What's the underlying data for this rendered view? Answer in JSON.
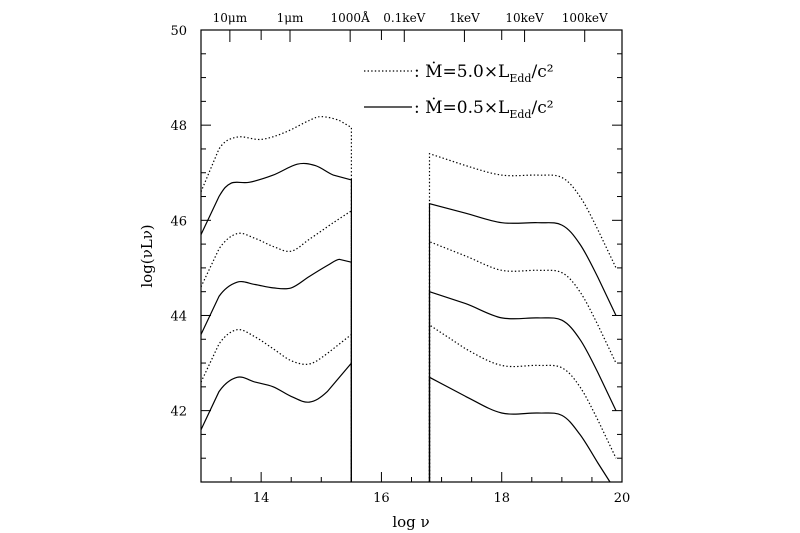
{
  "chart_data": {
    "type": "line",
    "title": "",
    "xlabel": "log ν",
    "ylabel": "log(νLν)",
    "xlim": [
      13,
      20
    ],
    "ylim": [
      40.5,
      50
    ],
    "x_ticks": [
      14,
      16,
      18,
      20
    ],
    "y_ticks": [
      42,
      44,
      46,
      48,
      50
    ],
    "top_axis_labels": [
      {
        "label": "10μm",
        "x": 13.48
      },
      {
        "label": "1μm",
        "x": 14.48
      },
      {
        "label": "1000Å",
        "x": 15.48
      },
      {
        "label": "0.1keV",
        "x": 16.38
      },
      {
        "label": "1keV",
        "x": 17.38
      },
      {
        "label": "10keV",
        "x": 18.38
      },
      {
        "label": "100keV",
        "x": 19.38
      }
    ],
    "legend": [
      {
        "label_main": ": Ṁ=5.0×L",
        "label_sub": "Edd",
        "label_tail": "/c²",
        "style": "dotted"
      },
      {
        "label_main": ": Ṁ=0.5×L",
        "label_sub": "Edd",
        "label_tail": "/c²",
        "style": "solid"
      }
    ],
    "legend_position": "top-right",
    "series": [
      {
        "style": "dotted",
        "points": [
          [
            13.0,
            46.6
          ],
          [
            13.3,
            47.5
          ],
          [
            13.6,
            47.75
          ],
          [
            14.0,
            47.7
          ],
          [
            14.4,
            47.85
          ],
          [
            14.8,
            48.1
          ],
          [
            15.0,
            48.18
          ],
          [
            15.3,
            48.1
          ],
          [
            15.5,
            47.95
          ],
          [
            15.5,
            40.5
          ]
        ]
      },
      {
        "style": "solid",
        "points": [
          [
            13.0,
            45.7
          ],
          [
            13.3,
            46.5
          ],
          [
            13.5,
            46.78
          ],
          [
            13.8,
            46.8
          ],
          [
            14.2,
            46.95
          ],
          [
            14.6,
            47.18
          ],
          [
            14.9,
            47.15
          ],
          [
            15.2,
            46.95
          ],
          [
            15.5,
            46.85
          ],
          [
            15.5,
            40.5
          ]
        ]
      },
      {
        "style": "dotted",
        "points": [
          [
            13.0,
            44.6
          ],
          [
            13.3,
            45.4
          ],
          [
            13.6,
            45.72
          ],
          [
            13.9,
            45.62
          ],
          [
            14.2,
            45.45
          ],
          [
            14.5,
            45.35
          ],
          [
            14.8,
            45.6
          ],
          [
            15.2,
            45.95
          ],
          [
            15.5,
            46.2
          ],
          [
            15.5,
            40.5
          ]
        ]
      },
      {
        "style": "solid",
        "points": [
          [
            13.0,
            43.6
          ],
          [
            13.3,
            44.4
          ],
          [
            13.6,
            44.7
          ],
          [
            13.9,
            44.65
          ],
          [
            14.2,
            44.58
          ],
          [
            14.5,
            44.58
          ],
          [
            14.8,
            44.82
          ],
          [
            15.1,
            45.05
          ],
          [
            15.3,
            45.18
          ],
          [
            15.5,
            45.12
          ],
          [
            15.5,
            40.5
          ]
        ]
      },
      {
        "style": "dotted",
        "points": [
          [
            13.0,
            42.6
          ],
          [
            13.3,
            43.4
          ],
          [
            13.6,
            43.7
          ],
          [
            13.9,
            43.55
          ],
          [
            14.2,
            43.3
          ],
          [
            14.5,
            43.05
          ],
          [
            14.8,
            42.98
          ],
          [
            15.1,
            43.2
          ],
          [
            15.5,
            43.6
          ],
          [
            15.5,
            40.5
          ]
        ]
      },
      {
        "style": "solid",
        "points": [
          [
            13.0,
            41.6
          ],
          [
            13.3,
            42.4
          ],
          [
            13.6,
            42.7
          ],
          [
            13.9,
            42.6
          ],
          [
            14.2,
            42.5
          ],
          [
            14.5,
            42.3
          ],
          [
            14.8,
            42.18
          ],
          [
            15.1,
            42.4
          ],
          [
            15.5,
            43.0
          ],
          [
            15.5,
            40.5
          ]
        ]
      },
      {
        "style": "dotted",
        "points": [
          [
            16.8,
            40.5
          ],
          [
            16.8,
            47.4
          ],
          [
            17.4,
            47.15
          ],
          [
            18.0,
            46.95
          ],
          [
            18.6,
            46.95
          ],
          [
            19.0,
            46.9
          ],
          [
            19.3,
            46.5
          ],
          [
            19.6,
            45.8
          ],
          [
            19.9,
            45.0
          ]
        ]
      },
      {
        "style": "solid",
        "points": [
          [
            16.8,
            40.5
          ],
          [
            16.8,
            46.35
          ],
          [
            17.4,
            46.15
          ],
          [
            18.0,
            45.95
          ],
          [
            18.6,
            45.95
          ],
          [
            19.0,
            45.9
          ],
          [
            19.3,
            45.5
          ],
          [
            19.6,
            44.8
          ],
          [
            19.9,
            44.0
          ]
        ]
      },
      {
        "style": "dotted",
        "points": [
          [
            16.8,
            40.5
          ],
          [
            16.8,
            45.55
          ],
          [
            17.4,
            45.25
          ],
          [
            18.0,
            44.95
          ],
          [
            18.6,
            44.95
          ],
          [
            19.0,
            44.9
          ],
          [
            19.3,
            44.5
          ],
          [
            19.6,
            43.8
          ],
          [
            19.9,
            43.0
          ]
        ]
      },
      {
        "style": "solid",
        "points": [
          [
            16.8,
            40.5
          ],
          [
            16.8,
            44.5
          ],
          [
            17.4,
            44.25
          ],
          [
            18.0,
            43.95
          ],
          [
            18.6,
            43.95
          ],
          [
            19.0,
            43.9
          ],
          [
            19.3,
            43.5
          ],
          [
            19.6,
            42.8
          ],
          [
            19.9,
            42.0
          ]
        ]
      },
      {
        "style": "dotted",
        "points": [
          [
            16.8,
            40.5
          ],
          [
            16.8,
            43.8
          ],
          [
            17.4,
            43.3
          ],
          [
            18.0,
            42.95
          ],
          [
            18.6,
            42.95
          ],
          [
            19.0,
            42.9
          ],
          [
            19.3,
            42.5
          ],
          [
            19.6,
            41.8
          ],
          [
            19.9,
            41.0
          ]
        ]
      },
      {
        "style": "solid",
        "points": [
          [
            16.8,
            40.5
          ],
          [
            16.8,
            42.7
          ],
          [
            17.4,
            42.3
          ],
          [
            18.0,
            41.95
          ],
          [
            18.6,
            41.95
          ],
          [
            19.0,
            41.9
          ],
          [
            19.3,
            41.5
          ],
          [
            19.6,
            40.9
          ],
          [
            19.8,
            40.5
          ]
        ]
      }
    ]
  }
}
